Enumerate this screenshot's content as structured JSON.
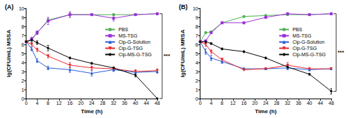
{
  "chart_data": [
    {
      "type": "line",
      "title": "(A)",
      "x_label": "Time (h)",
      "y_label": "lg(CFU/mL) MSSA",
      "x": [
        0,
        2,
        4,
        8,
        16,
        24,
        32,
        40,
        48
      ],
      "xlim": [
        0,
        48
      ],
      "xticks": [
        0,
        4,
        8,
        12,
        16,
        20,
        24,
        28,
        32,
        36,
        40,
        44,
        48
      ],
      "ylim": [
        0,
        10
      ],
      "yticks": [
        0,
        1,
        2,
        3,
        4,
        5,
        6,
        7,
        8,
        9,
        10
      ],
      "grid": false,
      "legend": "right",
      "series": [
        {
          "name": "PBS",
          "color": "#4caf50",
          "marker": "circle",
          "values": [
            6.3,
            6.5,
            7.3,
            8.7,
            9.3,
            9.3,
            9.3,
            9.3,
            9.4
          ],
          "errors": [
            0.1,
            0.1,
            0.2,
            0.2,
            0.3,
            0.1,
            0.1,
            0.1,
            0.1
          ]
        },
        {
          "name": "MS-TSG",
          "color": "#9b30d9",
          "marker": "square",
          "values": [
            6.3,
            6.6,
            7.3,
            8.6,
            9.3,
            9.3,
            8.9,
            9.3,
            9.4
          ],
          "errors": [
            0.1,
            0.2,
            0.2,
            0.4,
            0.3,
            0.1,
            0.3,
            0.1,
            0.1
          ]
        },
        {
          "name": "Cip-G-Solution",
          "color": "#2a5bd7",
          "marker": "triangle",
          "values": [
            6.3,
            5.5,
            4.2,
            3.4,
            3.2,
            2.8,
            3.2,
            2.9,
            3.0
          ],
          "errors": [
            0.1,
            0.2,
            0.2,
            0.2,
            0.3,
            0.3,
            0.2,
            0.2,
            0.2
          ]
        },
        {
          "name": "Cip-G-TSG",
          "color": "#e8262a",
          "marker": "triangle-down",
          "values": [
            6.3,
            6.0,
            5.4,
            4.7,
            3.7,
            3.4,
            3.3,
            3.0,
            3.1
          ],
          "errors": [
            0.1,
            0.2,
            0.2,
            0.2,
            0.3,
            0.2,
            0.2,
            0.2,
            0.2
          ]
        },
        {
          "name": "Cip-MS-G-TSG",
          "color": "#000000",
          "marker": "diamond",
          "values": [
            6.3,
            6.5,
            6.2,
            5.6,
            4.5,
            3.9,
            3.4,
            2.6,
            0
          ],
          "errors": [
            0.1,
            0.2,
            0.2,
            0.3,
            0.1,
            0.1,
            0.1,
            0.2,
            0
          ]
        }
      ],
      "annotations": [
        {
          "text": "***",
          "x": 48,
          "y_from": 9.4,
          "y_to": 0
        }
      ]
    },
    {
      "type": "line",
      "title": "(B)",
      "x_label": "Time (h)",
      "y_label": "lg(CFU/mL) MRSA",
      "x": [
        0,
        2,
        4,
        8,
        16,
        24,
        32,
        40,
        48
      ],
      "xlim": [
        0,
        48
      ],
      "xticks": [
        0,
        4,
        8,
        12,
        16,
        20,
        24,
        28,
        32,
        36,
        40,
        44,
        48
      ],
      "ylim": [
        0,
        10
      ],
      "yticks": [
        0,
        1,
        2,
        3,
        4,
        5,
        6,
        7,
        8,
        9,
        10
      ],
      "grid": false,
      "legend": "right",
      "series": [
        {
          "name": "PBS",
          "color": "#4caf50",
          "marker": "circle",
          "values": [
            6.3,
            7.3,
            7.4,
            8.4,
            9.1,
            9.2,
            9.3,
            9.3,
            9.4
          ],
          "errors": [
            0.1,
            0.1,
            0.1,
            0.1,
            0.1,
            0.1,
            0.1,
            0.1,
            0.1
          ]
        },
        {
          "name": "MS-TSG",
          "color": "#9b30d9",
          "marker": "square",
          "values": [
            6.3,
            6.4,
            7.3,
            8.4,
            8.4,
            9.0,
            9.4,
            9.3,
            9.4
          ],
          "errors": [
            0.1,
            0.1,
            0.1,
            0.1,
            0.1,
            0.1,
            0.1,
            0.1,
            0.1
          ]
        },
        {
          "name": "Cip-G-Solution",
          "color": "#2a5bd7",
          "marker": "triangle",
          "values": [
            6.3,
            5.2,
            4.5,
            4.1,
            3.3,
            3.3,
            3.4,
            3.2,
            3.3
          ],
          "errors": [
            0.1,
            0.3,
            0.3,
            0.2,
            0.1,
            0.1,
            0.2,
            0.1,
            0.1
          ]
        },
        {
          "name": "Cip-G-TSG",
          "color": "#e8262a",
          "marker": "triangle-down",
          "values": [
            6.3,
            6.0,
            5.2,
            4.3,
            3.2,
            3.3,
            3.7,
            3.3,
            3.3
          ],
          "errors": [
            0.1,
            0.2,
            0.2,
            0.2,
            0.1,
            0.1,
            0.3,
            0.1,
            0.1
          ]
        },
        {
          "name": "Cip-MS-G-TSG",
          "color": "#000000",
          "marker": "diamond",
          "values": [
            6.3,
            6.3,
            6.1,
            5.5,
            5.2,
            4.5,
            3.5,
            2.7,
            0.8
          ],
          "errors": [
            0.1,
            0.1,
            0.1,
            0.1,
            0.1,
            0.1,
            0.2,
            0.1,
            0.3
          ]
        }
      ],
      "annotations": [
        {
          "text": "***",
          "x": 48,
          "y_from": 9.4,
          "y_to": 0.8
        }
      ]
    }
  ]
}
